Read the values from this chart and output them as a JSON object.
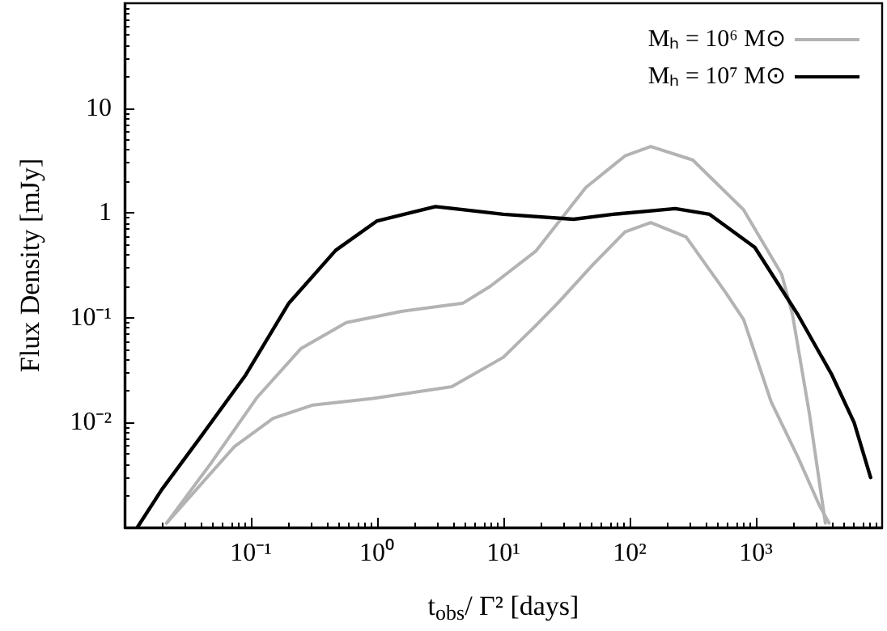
{
  "chart_data": {
    "type": "line",
    "xlabel": "t$_{obs}$/ Γ² [days]",
    "ylabel": "Flux Density [mJy]",
    "log": "xy",
    "xlim": [
      0.01,
      10000
    ],
    "ylim": [
      0.001,
      100
    ],
    "xticks": [
      {
        "value": 0.1,
        "label": "10⁻¹"
      },
      {
        "value": 1,
        "label": "10⁰"
      },
      {
        "value": 10,
        "label": "10¹"
      },
      {
        "value": 100,
        "label": "10²"
      },
      {
        "value": 1000,
        "label": "10³"
      }
    ],
    "yticks": [
      {
        "value": 0.01,
        "label": "10⁻²"
      },
      {
        "value": 0.1,
        "label": "10⁻¹"
      },
      1,
      10
    ],
    "grid": false,
    "legend": "top right",
    "marker": "none",
    "line_style": "solid",
    "series": [
      {
        "name": "Mₕ = 10⁶ M⊙",
        "color": "#b3b3b3",
        "x": [
          0.0215,
          0.049,
          0.112,
          0.25,
          0.57,
          1.55,
          4.8,
          7.9,
          18,
          45,
          92,
          147,
          316,
          800,
          1600,
          1950,
          2650,
          3550
        ],
        "values": [
          0.0011,
          0.0042,
          0.0174,
          0.051,
          0.09,
          0.115,
          0.138,
          0.2,
          0.43,
          1.75,
          3.5,
          4.3,
          3.2,
          1.07,
          0.26,
          0.107,
          0.0123,
          0.0011
        ]
      },
      {
        "name": "Mₕ = 10⁷ M⊙",
        "color": "#000000",
        "x": [
          0.0126,
          0.0197,
          0.04,
          0.091,
          0.2,
          0.47,
          1.0,
          2.9,
          10,
          36,
          74,
          230,
          430,
          980,
          2150,
          4000,
          6000,
          8100
        ],
        "values": [
          0.001,
          0.0023,
          0.0073,
          0.0285,
          0.138,
          0.44,
          0.84,
          1.15,
          0.97,
          0.87,
          0.97,
          1.1,
          0.97,
          0.47,
          0.107,
          0.0285,
          0.01,
          0.003
        ]
      },
      {
        "color": "#b3b3b3",
        "x": [
          0.0215,
          0.074,
          0.15,
          0.31,
          0.93,
          3.9,
          10,
          18,
          27,
          51,
          92,
          147,
          280,
          575,
          800,
          1320,
          2150,
          3200,
          3800
        ],
        "values": [
          0.0011,
          0.0059,
          0.011,
          0.0147,
          0.017,
          0.022,
          0.042,
          0.084,
          0.138,
          0.32,
          0.66,
          0.81,
          0.59,
          0.175,
          0.096,
          0.0158,
          0.0047,
          0.0016,
          0.0011
        ]
      }
    ]
  }
}
